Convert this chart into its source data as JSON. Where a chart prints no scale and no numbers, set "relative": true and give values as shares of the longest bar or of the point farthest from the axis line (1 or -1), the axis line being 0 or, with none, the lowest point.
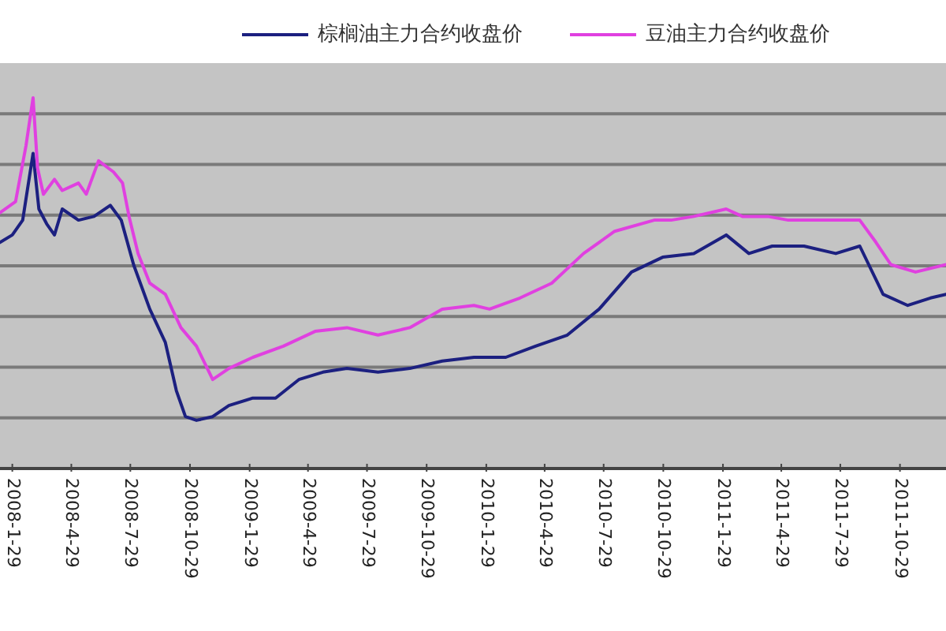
{
  "chart_data": {
    "type": "line",
    "relative": true,
    "legend": "top",
    "grid": "y",
    "marker": "none",
    "line_style": "solid",
    "xlim": [
      "2008-01-10",
      "2012-01-08"
    ],
    "xticks": [
      {
        "value": "2008-01-29",
        "label": "2008-1-29"
      },
      {
        "value": "2008-04-29",
        "label": "2008-4-29"
      },
      {
        "value": "2008-07-29",
        "label": "2008-7-29"
      },
      {
        "value": "2008-10-29",
        "label": "2008-10-29"
      },
      {
        "value": "2009-01-29",
        "label": "2009-1-29"
      },
      {
        "value": "2009-04-29",
        "label": "2009-4-29"
      },
      {
        "value": "2009-07-29",
        "label": "2009-7-29"
      },
      {
        "value": "2009-10-29",
        "label": "2009-10-29"
      },
      {
        "value": "2010-01-29",
        "label": "2010-1-29"
      },
      {
        "value": "2010-04-29",
        "label": "2010-4-29"
      },
      {
        "value": "2010-07-29",
        "label": "2010-7-29"
      },
      {
        "value": "2010-10-29",
        "label": "2010-10-29"
      },
      {
        "value": "2011-01-29",
        "label": "2011-1-29"
      },
      {
        "value": "2011-04-29",
        "label": "2011-4-29"
      },
      {
        "value": "2011-07-29",
        "label": "2011-7-29"
      },
      {
        "value": "2011-10-29",
        "label": "2011-10-29"
      }
    ],
    "series": [
      {
        "name": "棕榈油主力合约收盘价",
        "color": "#1c2080",
        "x": [
          "2008-01-10",
          "2008-01-29",
          "2008-02-14",
          "2008-03-01",
          "2008-03-10",
          "2008-03-22",
          "2008-04-03",
          "2008-04-15",
          "2008-05-10",
          "2008-06-03",
          "2008-06-28",
          "2008-07-15",
          "2008-08-03",
          "2008-08-28",
          "2008-09-21",
          "2008-10-08",
          "2008-10-22",
          "2008-11-08",
          "2008-12-03",
          "2008-12-28",
          "2009-02-03",
          "2009-03-10",
          "2009-04-15",
          "2009-05-22",
          "2009-06-28",
          "2009-08-15",
          "2009-10-03",
          "2009-11-22",
          "2010-01-10",
          "2010-02-28",
          "2010-04-15",
          "2010-06-03",
          "2010-07-22",
          "2010-09-10",
          "2010-10-28",
          "2010-12-15",
          "2011-02-03",
          "2011-03-10",
          "2011-04-15",
          "2011-06-03",
          "2011-07-22",
          "2011-08-28",
          "2011-10-03",
          "2011-11-10",
          "2011-12-15",
          "2012-01-08"
        ],
        "values": [
          0.61,
          0.63,
          0.67,
          0.85,
          0.7,
          0.66,
          0.63,
          0.7,
          0.67,
          0.68,
          0.71,
          0.67,
          0.55,
          0.43,
          0.34,
          0.21,
          0.14,
          0.13,
          0.14,
          0.17,
          0.19,
          0.19,
          0.24,
          0.26,
          0.27,
          0.26,
          0.27,
          0.29,
          0.3,
          0.3,
          0.33,
          0.36,
          0.43,
          0.53,
          0.57,
          0.58,
          0.63,
          0.58,
          0.6,
          0.6,
          0.58,
          0.6,
          0.47,
          0.44,
          0.46,
          0.47
        ]
      },
      {
        "name": "豆油主力合约收盘价",
        "color": "#e040e0",
        "x": [
          "2008-01-10",
          "2008-02-03",
          "2008-02-19",
          "2008-03-01",
          "2008-03-08",
          "2008-03-17",
          "2008-04-03",
          "2008-04-15",
          "2008-05-10",
          "2008-05-22",
          "2008-06-10",
          "2008-07-03",
          "2008-07-17",
          "2008-07-27",
          "2008-08-10",
          "2008-08-28",
          "2008-09-21",
          "2008-10-15",
          "2008-11-08",
          "2008-12-03",
          "2008-12-28",
          "2009-02-03",
          "2009-03-22",
          "2009-05-10",
          "2009-06-28",
          "2009-08-15",
          "2009-10-03",
          "2009-11-22",
          "2010-01-10",
          "2010-02-03",
          "2010-03-22",
          "2010-05-10",
          "2010-06-28",
          "2010-08-15",
          "2010-10-15",
          "2010-11-10",
          "2010-12-15",
          "2011-02-03",
          "2011-02-28",
          "2011-04-08",
          "2011-05-10",
          "2011-06-28",
          "2011-08-28",
          "2011-09-22",
          "2011-10-15",
          "2011-11-22",
          "2012-01-08"
        ],
        "values": [
          0.69,
          0.72,
          0.87,
          1,
          0.81,
          0.74,
          0.78,
          0.75,
          0.77,
          0.74,
          0.83,
          0.8,
          0.77,
          0.68,
          0.58,
          0.5,
          0.47,
          0.38,
          0.33,
          0.24,
          0.27,
          0.3,
          0.33,
          0.37,
          0.38,
          0.36,
          0.38,
          0.43,
          0.44,
          0.43,
          0.46,
          0.5,
          0.58,
          0.64,
          0.67,
          0.67,
          0.68,
          0.7,
          0.68,
          0.68,
          0.67,
          0.67,
          0.67,
          0.61,
          0.55,
          0.53,
          0.55
        ]
      }
    ]
  }
}
